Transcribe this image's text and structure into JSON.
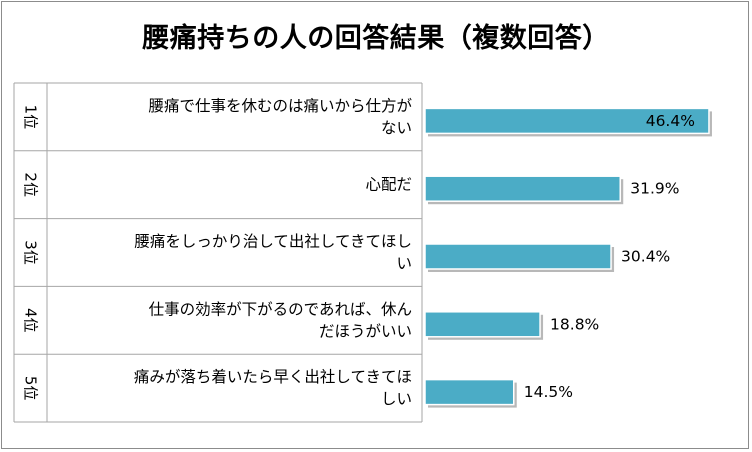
{
  "chart_data": {
    "type": "bar",
    "orientation": "horizontal",
    "title": "腰痛持ちの人の回答結果（複数回答）",
    "ranks": [
      "1位",
      "2位",
      "3位",
      "4位",
      "5位"
    ],
    "categories": [
      "腰痛で仕事を休むのは痛いから仕方がない",
      "心配だ",
      "腰痛をしっかり治して出社してきてほしい",
      "仕事の効率が下がるのであれば、休んだほうがいい",
      "痛みが落ち着いたら早く出社してきてほしい"
    ],
    "category_lines": [
      [
        "腰痛で仕事を休むのは痛いから仕方が",
        "ない"
      ],
      [
        "心配だ"
      ],
      [
        "腰痛をしっかり治して出社してきてほし",
        "い"
      ],
      [
        "仕事の効率が下がるのであれば、休ん",
        "だほうがいい"
      ],
      [
        "痛みが落ち着いたら早く出社してきてほ",
        "しい"
      ]
    ],
    "values": [
      46.4,
      31.9,
      30.4,
      18.8,
      14.5
    ],
    "value_labels": [
      "46.4%",
      "31.9%",
      "30.4%",
      "18.8%",
      "14.5%"
    ],
    "bar_color": "#4bacc6",
    "grid": false,
    "legend": "none"
  }
}
